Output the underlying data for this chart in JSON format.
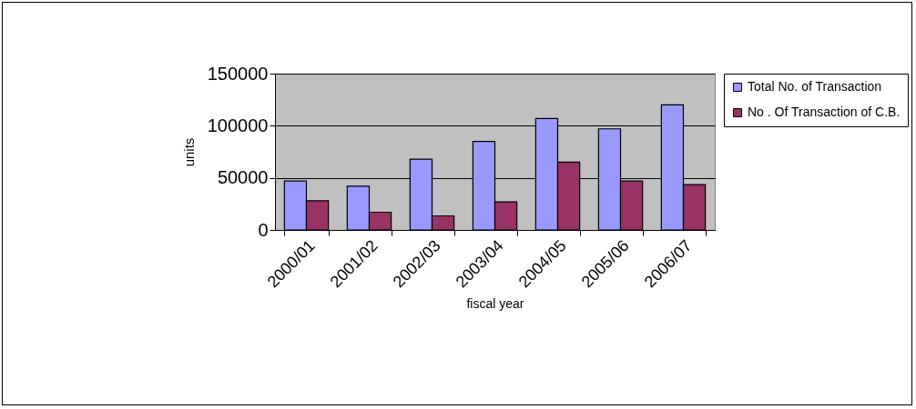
{
  "chart_data": {
    "type": "bar",
    "xlabel": "fiscal year",
    "ylabel": "units",
    "categories": [
      "2000/01",
      "2001/02",
      "2002/03",
      "2003/04",
      "2004/05",
      "2005/06",
      "2006/07"
    ],
    "series": [
      {
        "name": "Total No. of Transaction",
        "color": "#9999ff",
        "values": [
          47000,
          42000,
          68000,
          85000,
          107000,
          97000,
          120000
        ]
      },
      {
        "name": "No . Of Transaction of C.B.",
        "color": "#993366",
        "values": [
          28000,
          17000,
          13500,
          27000,
          65000,
          47000,
          43500
        ]
      }
    ],
    "ylim": [
      0,
      150000
    ],
    "yticks": [
      0,
      50000,
      100000,
      150000
    ],
    "grid": "y",
    "legend": "right"
  }
}
